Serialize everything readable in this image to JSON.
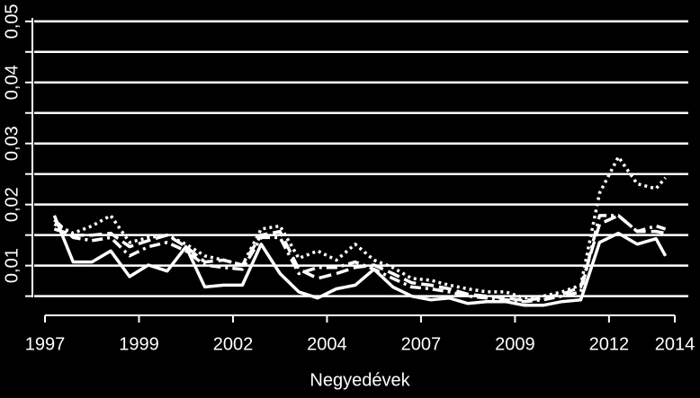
{
  "chart_data": {
    "type": "line",
    "x_label": "Negyedévek",
    "x": [
      1,
      3,
      5,
      7,
      9,
      11,
      13,
      15,
      17,
      19,
      21,
      23,
      25,
      27,
      29,
      31,
      33,
      35,
      37,
      39,
      41,
      43,
      45,
      47,
      49,
      51,
      53,
      55,
      57,
      59,
      61,
      63,
      65,
      66
    ],
    "xlim": [
      0,
      67
    ],
    "xticks": [
      {
        "value": 0,
        "label": "1997"
      },
      {
        "value": 10,
        "label": "1999"
      },
      {
        "value": 20,
        "label": "2002"
      },
      {
        "value": 30,
        "label": "2004"
      },
      {
        "value": 40,
        "label": "2007"
      },
      {
        "value": 50,
        "label": "2009"
      },
      {
        "value": 60,
        "label": "2012"
      },
      {
        "value": 67,
        "label": "2014"
      }
    ],
    "ylim": [
      0.002,
      0.051
    ],
    "yticks": [
      {
        "value": 0.01,
        "label": "0,01"
      },
      {
        "value": 0.02,
        "label": "0,02"
      },
      {
        "value": 0.03,
        "label": "0,03"
      },
      {
        "value": 0.04,
        "label": "0,04"
      },
      {
        "value": 0.05,
        "label": "0,05"
      }
    ],
    "minor_yticks": [
      0.005,
      0.015,
      0.025,
      0.035,
      0.045
    ],
    "grid": true,
    "background": "#000000",
    "series": [
      {
        "color": "#ffffff",
        "dash": "solid",
        "values": [
          0.0182,
          0.0106,
          0.0106,
          0.0124,
          0.0082,
          0.0101,
          0.0091,
          0.0131,
          0.0065,
          0.0068,
          0.0068,
          0.0135,
          0.0087,
          0.0057,
          0.0047,
          0.0062,
          0.0068,
          0.0094,
          0.0065,
          0.005,
          0.0044,
          0.0047,
          0.0038,
          0.0041,
          0.0041,
          0.0035,
          0.0035,
          0.0041,
          0.0044,
          0.0138,
          0.0153,
          0.0135,
          0.0144,
          0.0116
        ]
      },
      {
        "color": "#ffffff",
        "dash": "dashed",
        "values": [
          0.016,
          0.015,
          0.015,
          0.0153,
          0.0131,
          0.0141,
          0.015,
          0.0131,
          0.0106,
          0.0109,
          0.0101,
          0.015,
          0.0156,
          0.0094,
          0.0079,
          0.0087,
          0.0097,
          0.0101,
          0.0087,
          0.0072,
          0.0068,
          0.0062,
          0.0053,
          0.005,
          0.0047,
          0.0043,
          0.0047,
          0.0053,
          0.0065,
          0.0168,
          0.0182,
          0.0156,
          0.0156,
          0.0153
        ]
      },
      {
        "color": "#ffffff",
        "dash": "dotted",
        "values": [
          0.0168,
          0.0153,
          0.0165,
          0.0182,
          0.0138,
          0.0146,
          0.015,
          0.0135,
          0.0116,
          0.0109,
          0.0101,
          0.016,
          0.0165,
          0.0112,
          0.0124,
          0.0109,
          0.0135,
          0.0109,
          0.0097,
          0.0079,
          0.0076,
          0.0068,
          0.0062,
          0.0057,
          0.0057,
          0.0047,
          0.005,
          0.0057,
          0.0068,
          0.0219,
          0.0278,
          0.0234,
          0.0226,
          0.0244
        ]
      },
      {
        "color": "#ffffff",
        "dash": "dashdot",
        "values": [
          0.0175,
          0.0146,
          0.0141,
          0.0146,
          0.0116,
          0.0131,
          0.0138,
          0.0124,
          0.0101,
          0.0097,
          0.0094,
          0.0146,
          0.0146,
          0.0087,
          0.0097,
          0.0097,
          0.0106,
          0.0094,
          0.0079,
          0.0065,
          0.0062,
          0.0057,
          0.005,
          0.0047,
          0.0044,
          0.0041,
          0.0044,
          0.005,
          0.0057,
          0.0182,
          0.0182,
          0.0156,
          0.0165,
          0.016
        ]
      }
    ]
  }
}
